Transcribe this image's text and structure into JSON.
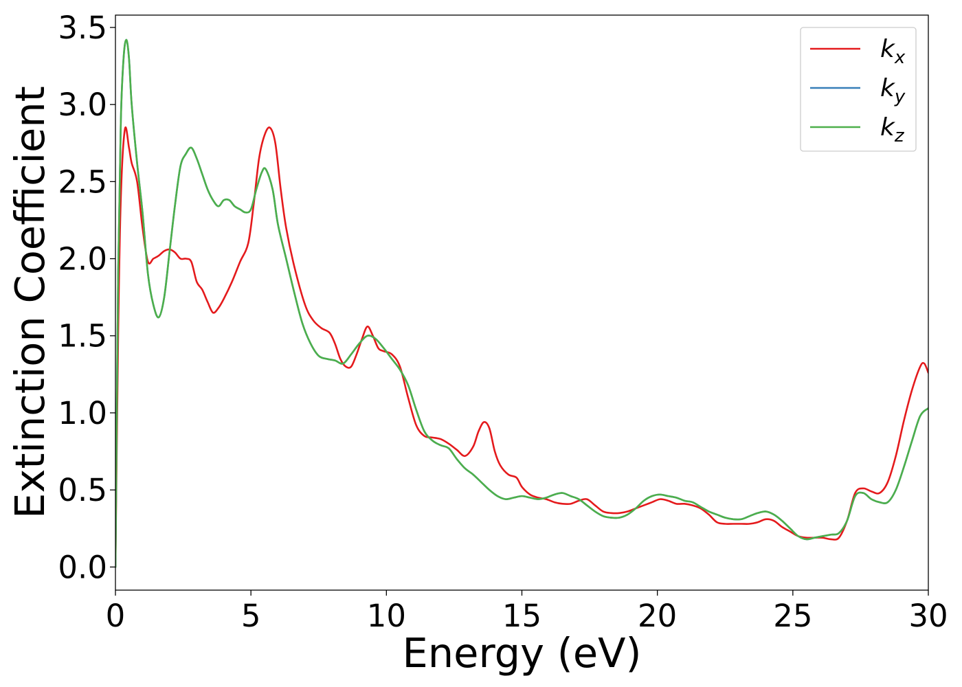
{
  "chart_data": {
    "type": "line",
    "title": "",
    "xlabel": "Energy (eV)",
    "ylabel": "Extinction Coefficient",
    "xlim": [
      0,
      30
    ],
    "ylim": [
      -0.15,
      3.58
    ],
    "xticks": [
      0,
      5,
      10,
      15,
      20,
      25,
      30
    ],
    "xtick_labels": [
      "0",
      "5",
      "10",
      "15",
      "20",
      "25",
      "30"
    ],
    "yticks": [
      0.0,
      0.5,
      1.0,
      1.5,
      2.0,
      2.5,
      3.0,
      3.5
    ],
    "ytick_labels": [
      "0.0",
      "0.5",
      "1.0",
      "1.5",
      "2.0",
      "2.5",
      "3.0",
      "3.5"
    ],
    "grid": false,
    "legend_position": "top-right",
    "series": [
      {
        "name": "k_x",
        "legend_base": "k",
        "legend_sub": "x",
        "color": "#e41a1c",
        "x": [
          0,
          0.1,
          0.2,
          0.35,
          0.5,
          0.6,
          0.8,
          1.0,
          1.2,
          1.4,
          1.6,
          1.8,
          2.0,
          2.2,
          2.4,
          2.6,
          2.8,
          3.0,
          3.2,
          3.4,
          3.6,
          3.8,
          4.0,
          4.3,
          4.6,
          4.9,
          5.1,
          5.3,
          5.5,
          5.7,
          5.9,
          6.1,
          6.3,
          6.6,
          7.0,
          7.3,
          7.6,
          7.9,
          8.1,
          8.3,
          8.5,
          8.7,
          8.9,
          9.1,
          9.3,
          9.5,
          9.7,
          9.9,
          10.2,
          10.5,
          10.8,
          11.1,
          11.4,
          11.7,
          12.0,
          12.3,
          12.6,
          12.9,
          13.2,
          13.4,
          13.6,
          13.8,
          14.0,
          14.2,
          14.5,
          14.8,
          15.0,
          15.3,
          15.6,
          15.9,
          16.2,
          16.5,
          16.8,
          17.1,
          17.4,
          17.7,
          18.0,
          18.3,
          18.6,
          18.9,
          19.2,
          19.5,
          19.8,
          20.1,
          20.4,
          20.7,
          21.0,
          21.3,
          21.6,
          21.9,
          22.2,
          22.5,
          22.8,
          23.1,
          23.4,
          23.7,
          24.0,
          24.3,
          24.6,
          24.9,
          25.2,
          25.5,
          25.8,
          26.1,
          26.4,
          26.7,
          27.0,
          27.3,
          27.6,
          27.9,
          28.2,
          28.5,
          28.8,
          29.1,
          29.4,
          29.7,
          29.85,
          30.0
        ],
        "y": [
          0.0,
          1.5,
          2.4,
          2.84,
          2.72,
          2.62,
          2.5,
          2.2,
          1.98,
          2.0,
          2.02,
          2.05,
          2.06,
          2.04,
          2.0,
          2.0,
          1.98,
          1.85,
          1.8,
          1.72,
          1.65,
          1.68,
          1.74,
          1.85,
          1.98,
          2.1,
          2.35,
          2.65,
          2.8,
          2.85,
          2.75,
          2.45,
          2.2,
          1.95,
          1.7,
          1.6,
          1.55,
          1.52,
          1.45,
          1.35,
          1.3,
          1.3,
          1.38,
          1.48,
          1.56,
          1.5,
          1.42,
          1.4,
          1.38,
          1.3,
          1.1,
          0.92,
          0.85,
          0.84,
          0.83,
          0.8,
          0.76,
          0.72,
          0.78,
          0.88,
          0.94,
          0.9,
          0.75,
          0.66,
          0.6,
          0.58,
          0.52,
          0.47,
          0.45,
          0.44,
          0.42,
          0.41,
          0.41,
          0.43,
          0.44,
          0.4,
          0.36,
          0.35,
          0.35,
          0.36,
          0.38,
          0.4,
          0.42,
          0.44,
          0.43,
          0.41,
          0.41,
          0.4,
          0.38,
          0.34,
          0.29,
          0.28,
          0.28,
          0.28,
          0.28,
          0.29,
          0.31,
          0.3,
          0.26,
          0.23,
          0.2,
          0.19,
          0.19,
          0.19,
          0.18,
          0.19,
          0.3,
          0.48,
          0.51,
          0.49,
          0.48,
          0.55,
          0.72,
          0.95,
          1.15,
          1.3,
          1.32,
          1.26
        ]
      },
      {
        "name": "k_y",
        "legend_base": "k",
        "legend_sub": "y",
        "color": "#377eb8",
        "x": [
          0,
          0.1,
          0.2,
          0.3,
          0.4,
          0.5,
          0.6,
          0.8,
          1.0,
          1.2,
          1.4,
          1.6,
          1.8,
          2.0,
          2.2,
          2.4,
          2.6,
          2.8,
          3.0,
          3.2,
          3.4,
          3.6,
          3.8,
          4.0,
          4.2,
          4.4,
          4.6,
          4.8,
          5.0,
          5.2,
          5.4,
          5.55,
          5.8,
          6.0,
          6.3,
          6.6,
          6.9,
          7.2,
          7.5,
          7.8,
          8.1,
          8.4,
          8.7,
          9.0,
          9.3,
          9.6,
          9.9,
          10.2,
          10.5,
          10.8,
          11.1,
          11.4,
          11.7,
          12.0,
          12.3,
          12.6,
          12.9,
          13.2,
          13.5,
          13.8,
          14.1,
          14.4,
          14.7,
          15.0,
          15.3,
          15.6,
          15.9,
          16.2,
          16.5,
          16.8,
          17.1,
          17.4,
          17.7,
          18.0,
          18.3,
          18.6,
          18.9,
          19.2,
          19.5,
          19.8,
          20.1,
          20.4,
          20.7,
          21.0,
          21.3,
          21.6,
          21.9,
          22.2,
          22.5,
          22.8,
          23.1,
          23.4,
          23.7,
          24.0,
          24.3,
          24.6,
          24.9,
          25.2,
          25.5,
          25.8,
          26.1,
          26.4,
          26.7,
          27.0,
          27.3,
          27.6,
          27.9,
          28.2,
          28.5,
          28.8,
          29.1,
          29.4,
          29.7,
          30.0
        ],
        "y": [
          0.0,
          1.9,
          2.9,
          3.3,
          3.42,
          3.3,
          3.0,
          2.62,
          2.3,
          1.9,
          1.7,
          1.62,
          1.75,
          2.05,
          2.35,
          2.6,
          2.68,
          2.72,
          2.65,
          2.55,
          2.45,
          2.38,
          2.34,
          2.38,
          2.38,
          2.34,
          2.32,
          2.3,
          2.32,
          2.45,
          2.56,
          2.58,
          2.45,
          2.22,
          2.0,
          1.78,
          1.58,
          1.45,
          1.37,
          1.35,
          1.34,
          1.32,
          1.38,
          1.45,
          1.5,
          1.48,
          1.42,
          1.35,
          1.28,
          1.18,
          1.02,
          0.88,
          0.82,
          0.79,
          0.77,
          0.7,
          0.64,
          0.6,
          0.55,
          0.5,
          0.46,
          0.44,
          0.45,
          0.46,
          0.45,
          0.44,
          0.45,
          0.47,
          0.48,
          0.46,
          0.44,
          0.4,
          0.36,
          0.33,
          0.32,
          0.32,
          0.34,
          0.38,
          0.43,
          0.46,
          0.47,
          0.46,
          0.45,
          0.43,
          0.42,
          0.39,
          0.36,
          0.34,
          0.32,
          0.31,
          0.31,
          0.33,
          0.35,
          0.36,
          0.34,
          0.3,
          0.25,
          0.2,
          0.18,
          0.19,
          0.2,
          0.21,
          0.22,
          0.3,
          0.46,
          0.48,
          0.44,
          0.42,
          0.42,
          0.5,
          0.65,
          0.82,
          0.98,
          1.03
        ]
      },
      {
        "name": "k_z",
        "legend_base": "k",
        "legend_sub": "z",
        "color": "#4daf4a",
        "x": [
          0,
          0.1,
          0.2,
          0.3,
          0.4,
          0.5,
          0.6,
          0.8,
          1.0,
          1.2,
          1.4,
          1.6,
          1.8,
          2.0,
          2.2,
          2.4,
          2.6,
          2.8,
          3.0,
          3.2,
          3.4,
          3.6,
          3.8,
          4.0,
          4.2,
          4.4,
          4.6,
          4.8,
          5.0,
          5.2,
          5.4,
          5.55,
          5.8,
          6.0,
          6.3,
          6.6,
          6.9,
          7.2,
          7.5,
          7.8,
          8.1,
          8.4,
          8.7,
          9.0,
          9.3,
          9.6,
          9.9,
          10.2,
          10.5,
          10.8,
          11.1,
          11.4,
          11.7,
          12.0,
          12.3,
          12.6,
          12.9,
          13.2,
          13.5,
          13.8,
          14.1,
          14.4,
          14.7,
          15.0,
          15.3,
          15.6,
          15.9,
          16.2,
          16.5,
          16.8,
          17.1,
          17.4,
          17.7,
          18.0,
          18.3,
          18.6,
          18.9,
          19.2,
          19.5,
          19.8,
          20.1,
          20.4,
          20.7,
          21.0,
          21.3,
          21.6,
          21.9,
          22.2,
          22.5,
          22.8,
          23.1,
          23.4,
          23.7,
          24.0,
          24.3,
          24.6,
          24.9,
          25.2,
          25.5,
          25.8,
          26.1,
          26.4,
          26.7,
          27.0,
          27.3,
          27.6,
          27.9,
          28.2,
          28.5,
          28.8,
          29.1,
          29.4,
          29.7,
          30.0
        ],
        "y": [
          0.0,
          1.9,
          2.9,
          3.3,
          3.42,
          3.3,
          3.0,
          2.62,
          2.3,
          1.9,
          1.7,
          1.62,
          1.75,
          2.05,
          2.35,
          2.6,
          2.68,
          2.72,
          2.65,
          2.55,
          2.45,
          2.38,
          2.34,
          2.38,
          2.38,
          2.34,
          2.32,
          2.3,
          2.32,
          2.45,
          2.56,
          2.58,
          2.45,
          2.22,
          2.0,
          1.78,
          1.58,
          1.45,
          1.37,
          1.35,
          1.34,
          1.32,
          1.38,
          1.45,
          1.5,
          1.48,
          1.42,
          1.35,
          1.28,
          1.18,
          1.02,
          0.88,
          0.82,
          0.79,
          0.77,
          0.7,
          0.64,
          0.6,
          0.55,
          0.5,
          0.46,
          0.44,
          0.45,
          0.46,
          0.45,
          0.44,
          0.45,
          0.47,
          0.48,
          0.46,
          0.44,
          0.4,
          0.36,
          0.33,
          0.32,
          0.32,
          0.34,
          0.38,
          0.43,
          0.46,
          0.47,
          0.46,
          0.45,
          0.43,
          0.42,
          0.39,
          0.36,
          0.34,
          0.32,
          0.31,
          0.31,
          0.33,
          0.35,
          0.36,
          0.34,
          0.3,
          0.25,
          0.2,
          0.18,
          0.19,
          0.2,
          0.21,
          0.22,
          0.3,
          0.46,
          0.48,
          0.44,
          0.42,
          0.42,
          0.5,
          0.65,
          0.82,
          0.98,
          1.03
        ]
      }
    ]
  }
}
